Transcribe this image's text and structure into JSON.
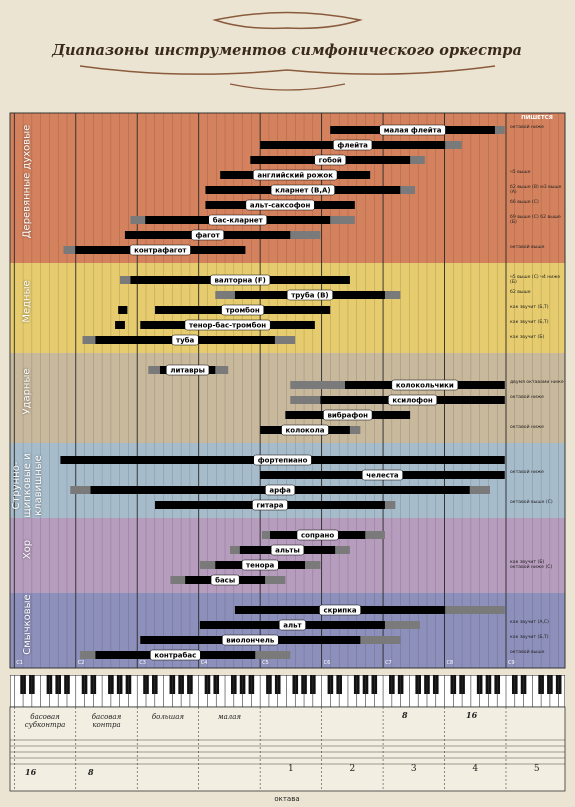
{
  "chart_data": {
    "type": "range",
    "title": "Диапазоны инструментов симфонического оркестра",
    "note_header": "ПИШЕТСЯ",
    "xlim": [
      0.93,
      9.96
    ],
    "xticks": [
      {
        "value": 1,
        "label": "C1"
      },
      {
        "value": 2,
        "label": "C2"
      },
      {
        "value": 3,
        "label": "C3"
      },
      {
        "value": 4,
        "label": "C4"
      },
      {
        "value": 5,
        "label": "C5"
      },
      {
        "value": 6,
        "label": "C6"
      },
      {
        "value": 7,
        "label": "C7"
      },
      {
        "value": 8,
        "label": "C8"
      },
      {
        "value": 9,
        "label": "C9"
      }
    ],
    "series": [
      {
        "name": "Деревянные духовые",
        "color": "#d4825e",
        "instruments": [
          {
            "name": "малая флейта",
            "range": [
              6.14,
              8.82
            ],
            "extended": [
              6.14,
              8.98
            ],
            "note": "октавой ниже"
          },
          {
            "name": "флейта",
            "range": [
              5.0,
              8.01
            ],
            "extended": [
              5.0,
              8.28
            ]
          },
          {
            "name": "гобой",
            "range": [
              4.84,
              7.44
            ],
            "extended": [
              4.84,
              7.68
            ]
          },
          {
            "name": "английский рожок",
            "range": [
              4.35,
              6.79
            ],
            "note": "ч5 выше"
          },
          {
            "name": "кларнет (B,A)",
            "range": [
              4.11,
              7.28
            ],
            "extended": [
              4.11,
              7.52
            ],
            "note": "б2 выше (В) м3 выше (А)"
          },
          {
            "name": "альт-саксофон",
            "range": [
              4.11,
              6.54
            ],
            "note": "б6 выше (С)"
          },
          {
            "name": "бас-кларнет",
            "range": [
              3.13,
              6.14
            ],
            "extended": [
              2.89,
              6.54
            ],
            "note": "б9 выше (С) б2 выше (Б)"
          },
          {
            "name": "фагот",
            "range": [
              2.8,
              5.49
            ],
            "extended": [
              2.8,
              5.98
            ]
          },
          {
            "name": "контрафагот",
            "range": [
              1.99,
              4.76
            ],
            "extended": [
              1.8,
              4.76
            ],
            "note": "октавой выше"
          }
        ]
      },
      {
        "name": "Медные",
        "color": "#e6cc6e",
        "instruments": [
          {
            "name": "валторна (F)",
            "range": [
              2.89,
              6.46
            ],
            "extended": [
              2.72,
              6.46
            ],
            "note": "ч5 выше (С) ч4 ниже (Б)"
          },
          {
            "name": "труба (B)",
            "range": [
              4.59,
              7.03
            ],
            "extended": [
              4.27,
              7.28
            ],
            "note": "б2 выше"
          },
          {
            "name": "тромбон",
            "range": [
              3.29,
              6.14
            ],
            "pedal": [
              2.69,
              2.84
            ],
            "note": "как звучит (Б,Т)"
          },
          {
            "name": "тенор-бас-тромбон",
            "range": [
              3.05,
              5.89
            ],
            "pedal": [
              2.64,
              2.8
            ],
            "note": "как звучит (Б,Т)"
          },
          {
            "name": "туба",
            "range": [
              2.32,
              5.24
            ],
            "extended": [
              2.11,
              5.57
            ],
            "note": "как звучит (Б)"
          }
        ]
      },
      {
        "name": "Ударные",
        "color": "#c8b89c",
        "instruments": [
          {
            "name": "литавры",
            "range": [
              3.37,
              4.27
            ],
            "extended": [
              3.18,
              4.48
            ]
          },
          {
            "name": "колокольчики",
            "range": [
              6.38,
              8.98
            ],
            "extended": [
              5.49,
              8.98
            ],
            "note": "двумя октавами ниже"
          },
          {
            "name": "ксилофон",
            "range": [
              5.98,
              8.98
            ],
            "extended": [
              5.49,
              8.98
            ],
            "note": "октавой ниже"
          },
          {
            "name": "вибрафон",
            "range": [
              5.41,
              7.44
            ]
          },
          {
            "name": "колокола",
            "range": [
              5.0,
              6.46
            ],
            "extended": [
              5.0,
              6.63
            ],
            "note": "октавой ниже"
          }
        ]
      },
      {
        "name": "Струнно-щипковые и клавишные",
        "color": "#a7bccb",
        "instruments": [
          {
            "name": "фортепиано",
            "range": [
              1.75,
              8.98
            ]
          },
          {
            "name": "челеста",
            "range": [
              5.0,
              8.98
            ],
            "note": "октавой ниже"
          },
          {
            "name": "арфа",
            "range": [
              2.24,
              8.41
            ],
            "extended": [
              1.91,
              8.74
            ]
          },
          {
            "name": "гитара",
            "range": [
              3.29,
              7.03
            ],
            "extended": [
              3.29,
              7.2
            ],
            "note": "октавой выше (С)"
          }
        ]
      },
      {
        "name": "Хор",
        "color": "#b69cbd",
        "instruments": [
          {
            "name": "сопрано",
            "range": [
              5.16,
              6.71
            ],
            "extended": [
              5.03,
              7.03
            ]
          },
          {
            "name": "альты",
            "range": [
              4.67,
              6.22
            ],
            "extended": [
              4.51,
              6.46
            ]
          },
          {
            "name": "тенора",
            "range": [
              4.27,
              5.73
            ],
            "extended": [
              4.02,
              5.98
            ],
            "note": "как звучит (Б) октавой ниже (С)"
          },
          {
            "name": "басы",
            "range": [
              3.78,
              5.08
            ],
            "extended": [
              3.54,
              5.41
            ]
          }
        ]
      },
      {
        "name": "Смычковые",
        "color": "#8e90bc",
        "instruments": [
          {
            "name": "скрипка",
            "range": [
              4.59,
              8.01
            ],
            "extended": [
              4.59,
              8.98
            ]
          },
          {
            "name": "альт",
            "range": [
              4.02,
              7.03
            ],
            "extended": [
              4.02,
              7.6
            ],
            "note": "как звучит (А,С)"
          },
          {
            "name": "виолончель",
            "range": [
              3.05,
              6.63
            ],
            "extended": [
              3.05,
              7.28
            ],
            "note": "как звучит (Б,Т)"
          },
          {
            "name": "контрабас",
            "range": [
              2.32,
              4.92
            ],
            "extended": [
              2.07,
              5.49
            ],
            "note": "октавой выше"
          }
        ]
      }
    ]
  },
  "keyboard": {
    "octaves": [
      "басовая субконтра",
      "басовая контра",
      "большая",
      "малая",
      "1",
      "2",
      "3",
      "4",
      "5"
    ],
    "octave_word": "октава",
    "markers": [
      "16",
      "8",
      "8",
      "16"
    ]
  }
}
